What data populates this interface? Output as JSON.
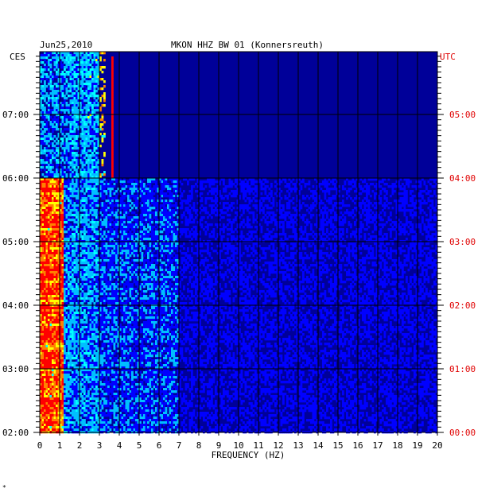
{
  "chart_data": {
    "type": "heatmap",
    "title_date": "Jun25,2010",
    "title_station": "MKON HHZ BW 01 (Konnersreuth)",
    "xlabel": "FREQUENCY (HZ)",
    "xlim": [
      0,
      20
    ],
    "x_ticks": [
      "0",
      "1",
      "2",
      "3",
      "4",
      "5",
      "6",
      "7",
      "8",
      "9",
      "10",
      "11",
      "12",
      "13",
      "14",
      "15",
      "16",
      "17",
      "18",
      "19",
      "20"
    ],
    "left_axis": {
      "timezone_label": "CES",
      "ticks": [
        "02:00",
        "03:00",
        "04:00",
        "05:00",
        "06:00",
        "07:00"
      ]
    },
    "right_axis": {
      "timezone_label": "UTC",
      "ticks": [
        "00:00",
        "01:00",
        "02:00",
        "03:00",
        "04:00",
        "05:00"
      ],
      "color": "#e00000"
    },
    "time_range_local_hours": [
      2.0,
      6.0
    ],
    "colormap": [
      "#00008b",
      "#0000ff",
      "#00bfff",
      "#00ffff",
      "#ffff00",
      "#ff8000",
      "#ff0000"
    ],
    "background_color": "#000099",
    "features": [
      {
        "name": "low-frequency noise band",
        "freq_range_hz": [
          0,
          1.5
        ],
        "intensity": "high"
      },
      {
        "name": "narrow tremor line",
        "freq_hz": 3.6,
        "local_time_range": [
          "06:00",
          "07:55"
        ]
      },
      {
        "name": "data level change",
        "local_time": "06:00"
      }
    ]
  },
  "footer_mark": "*"
}
